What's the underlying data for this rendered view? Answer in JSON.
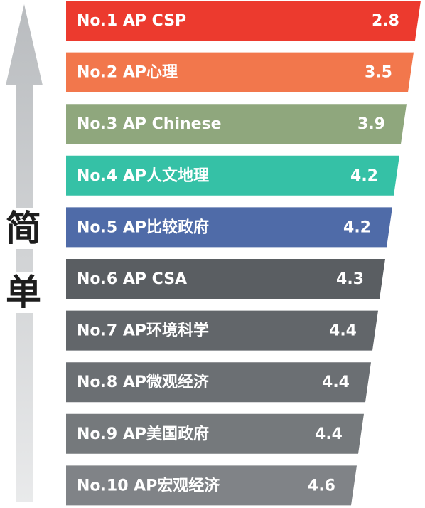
{
  "side_label": [
    "简",
    "单"
  ],
  "chart_data": {
    "type": "bar",
    "orientation": "horizontal",
    "categories": [
      "No.1  AP CSP",
      "No.2  AP心理",
      "No.3  AP Chinese",
      "No.4  AP人文地理",
      "No.5  AP比较政府",
      "No.6  AP CSA",
      "No.7  AP环境科学",
      "No.8  AP微观经济",
      "No.9  AP美国政府",
      "No.10 AP宏观经济"
    ],
    "values": [
      2.8,
      3.5,
      3.9,
      4.2,
      4.2,
      4.3,
      4.4,
      4.4,
      4.4,
      4.6
    ],
    "value_labels": [
      "2.8",
      "3.5",
      "3.9",
      "4.2",
      "4.2",
      "4.3",
      "4.4",
      "4.4",
      "4.4",
      "4.6"
    ],
    "bar_colors": [
      "#ec3a2e",
      "#f2774c",
      "#8fa77d",
      "#35c1a6",
      "#4f6ba8",
      "#5a5e62",
      "#62666a",
      "#6b6f73",
      "#75797c",
      "#808387"
    ],
    "title": "",
    "xlabel": "",
    "ylabel": ""
  }
}
